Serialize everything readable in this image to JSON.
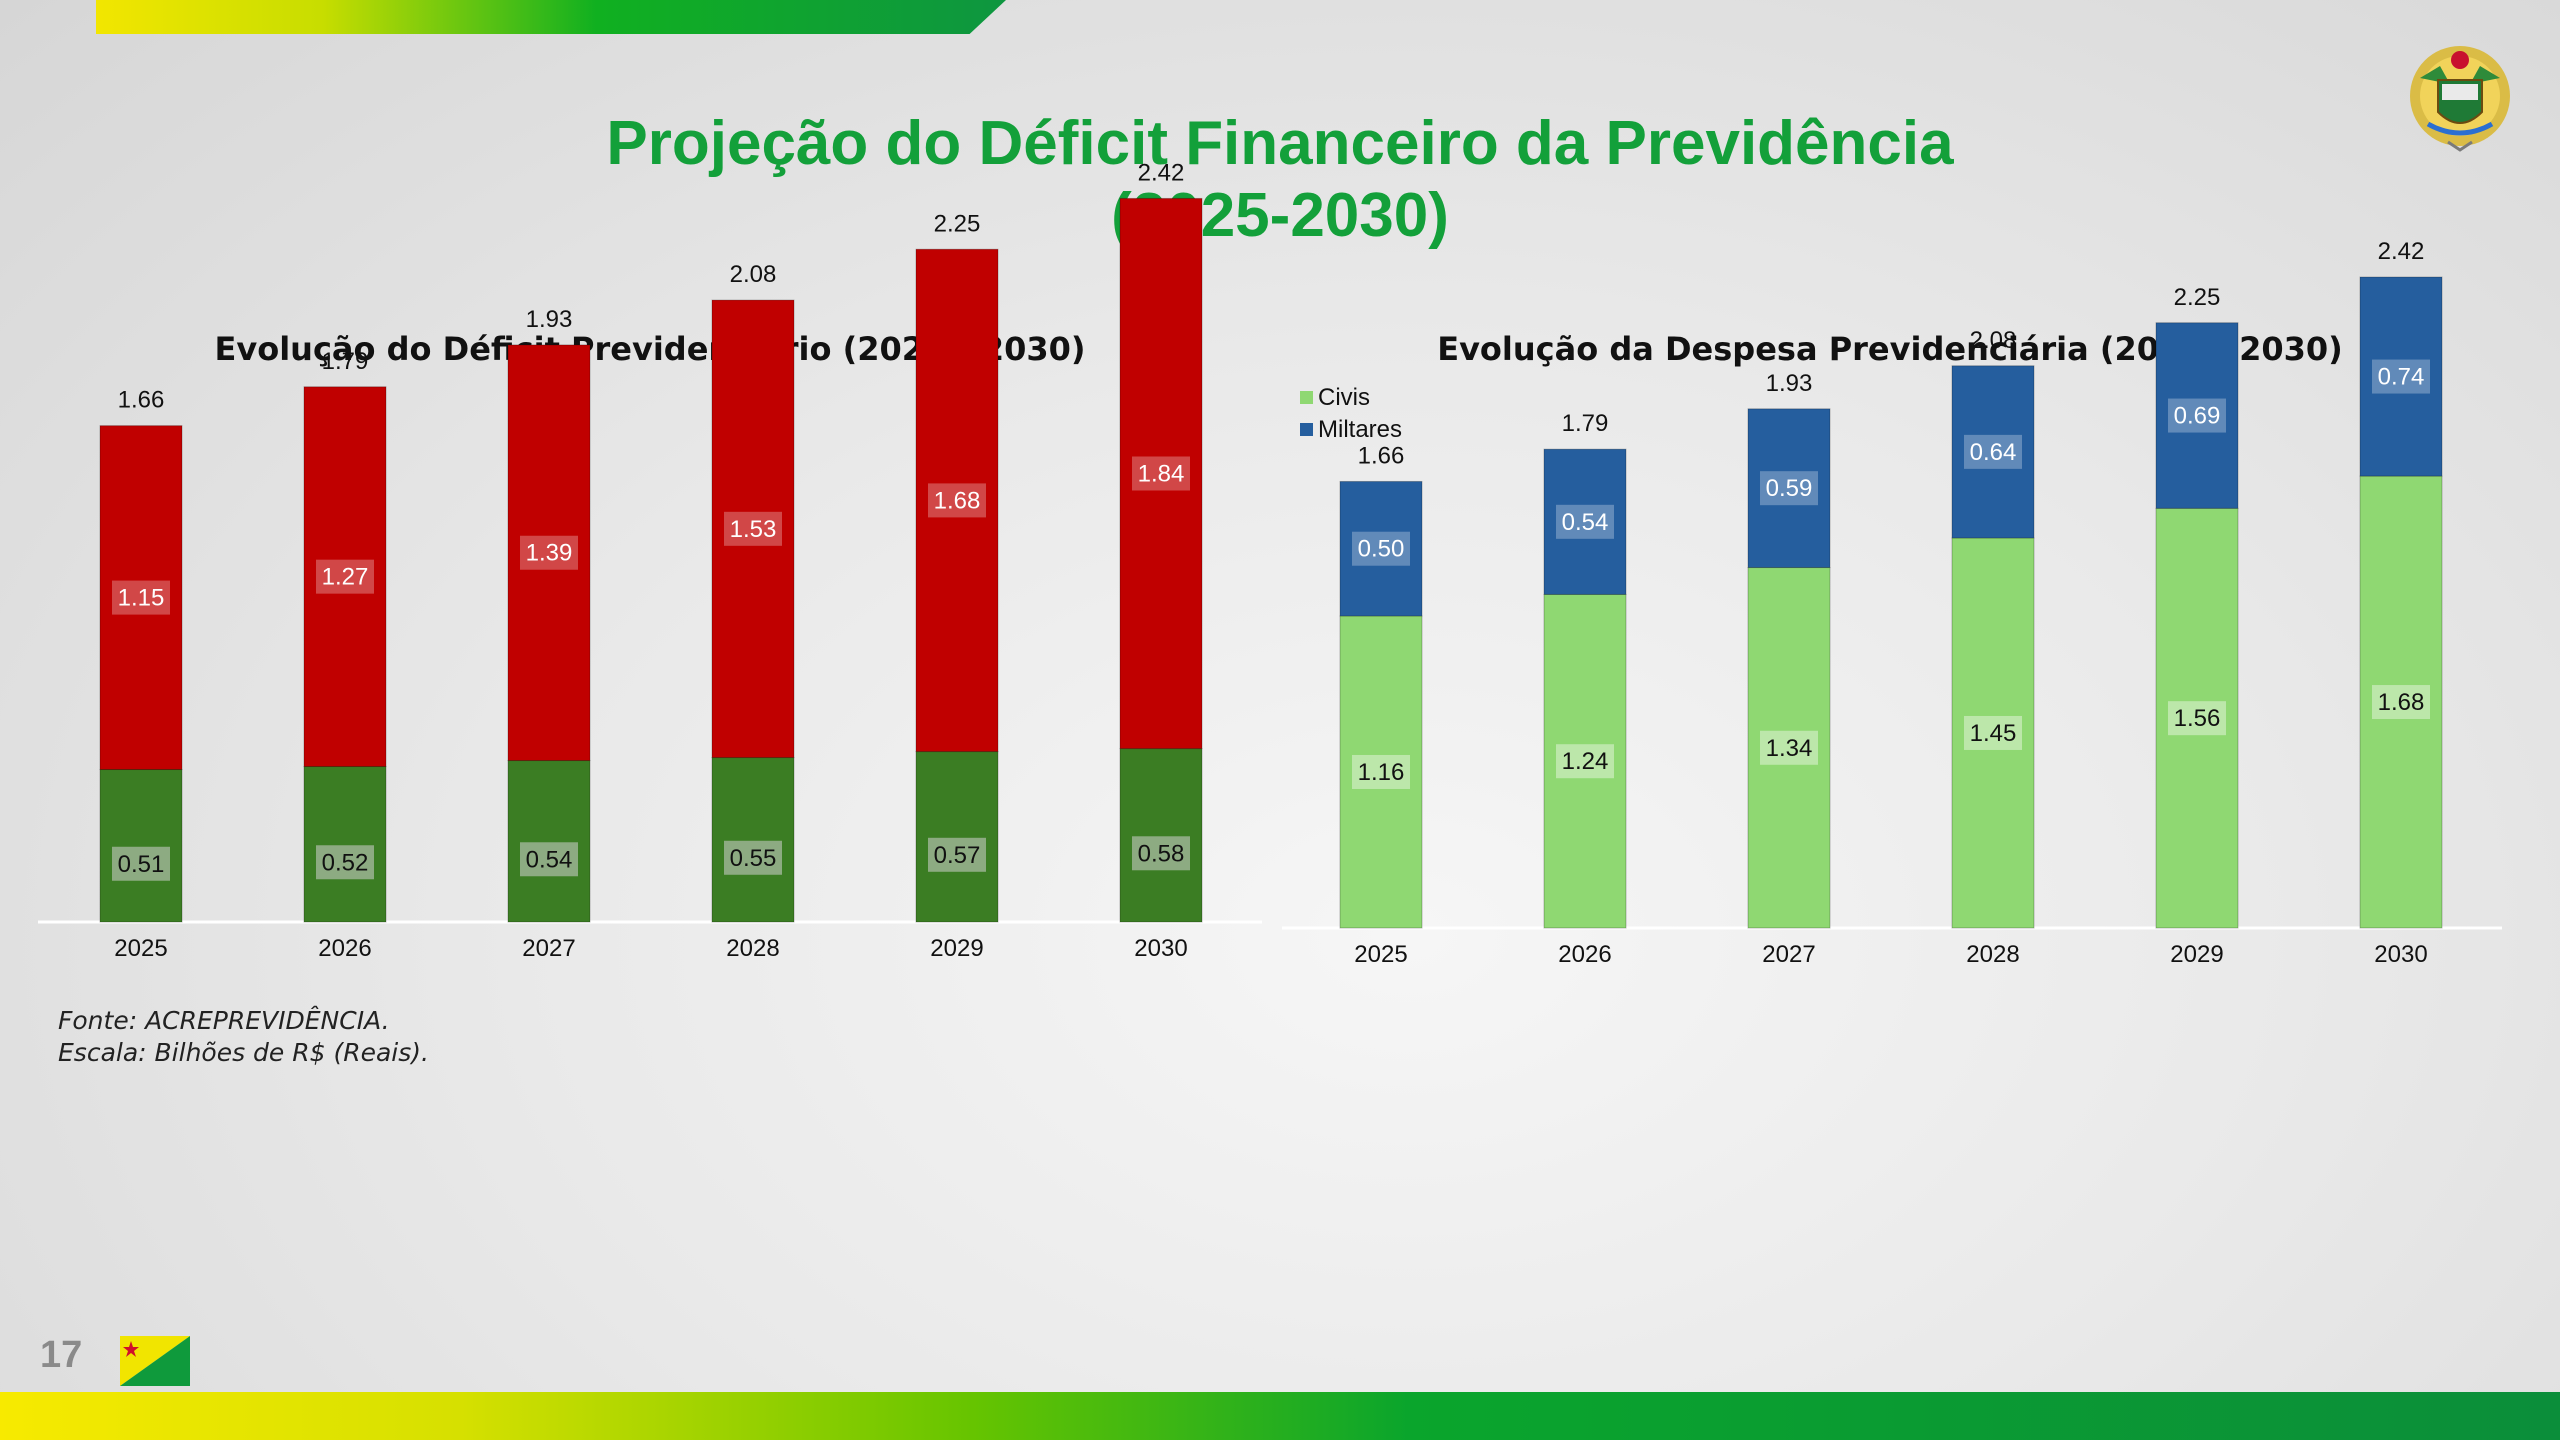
{
  "slide": {
    "title_line1": "Projeção do Déficit Financeiro da Previdência",
    "title_line2": "(2025-2030)",
    "page_number": "17",
    "source": "Fonte: ACREPREVIDÊNCIA.",
    "scale": "Escala: Bilhões de R$ (Reais).",
    "colors": {
      "title": "#13a03a",
      "deficit_red": "#c00000",
      "deficit_green": "#3b7d23",
      "civis": "#8fd872",
      "militares": "#255e9e"
    }
  },
  "chart_data": [
    {
      "type": "bar",
      "stacked": true,
      "title": "Evolução do Déficit Previdenciário (2025 - 2030)",
      "categories": [
        "2025",
        "2026",
        "2027",
        "2028",
        "2029",
        "2030"
      ],
      "series": [
        {
          "values": [
            0.51,
            0.52,
            0.54,
            0.55,
            0.57,
            0.58
          ],
          "color": "#3b7d23",
          "labels": [
            "0.51",
            "0.52",
            "0.54",
            "0.55",
            "0.57",
            "0.58"
          ]
        },
        {
          "values": [
            1.15,
            1.27,
            1.39,
            1.53,
            1.68,
            1.84
          ],
          "color": "#c00000",
          "labels": [
            "1.15",
            "1.27",
            "1.39",
            "1.53",
            "1.68",
            "1.84"
          ]
        }
      ],
      "totals": [
        "1.66",
        "1.79",
        "1.93",
        "2.08",
        "2.25",
        "2.42"
      ],
      "legend": "none"
    },
    {
      "type": "bar",
      "stacked": true,
      "title": "Evolução da Despesa Previdenciária (2025 - 2030)",
      "categories": [
        "2025",
        "2026",
        "2027",
        "2028",
        "2029",
        "2030"
      ],
      "series": [
        {
          "name": "Civis",
          "values": [
            1.16,
            1.24,
            1.34,
            1.45,
            1.56,
            1.68
          ],
          "color": "#8fd872",
          "labels": [
            "1.16",
            "1.24",
            "1.34",
            "1.45",
            "1.56",
            "1.68"
          ]
        },
        {
          "name": "Miltares",
          "values": [
            0.5,
            0.54,
            0.59,
            0.64,
            0.69,
            0.74
          ],
          "color": "#255e9e",
          "labels": [
            "0.50",
            "0.54",
            "0.59",
            "0.64",
            "0.69",
            "0.74"
          ]
        }
      ],
      "totals": [
        "1.66",
        "1.79",
        "1.93",
        "2.08",
        "2.25",
        "2.42"
      ],
      "legend": "top-left"
    }
  ]
}
